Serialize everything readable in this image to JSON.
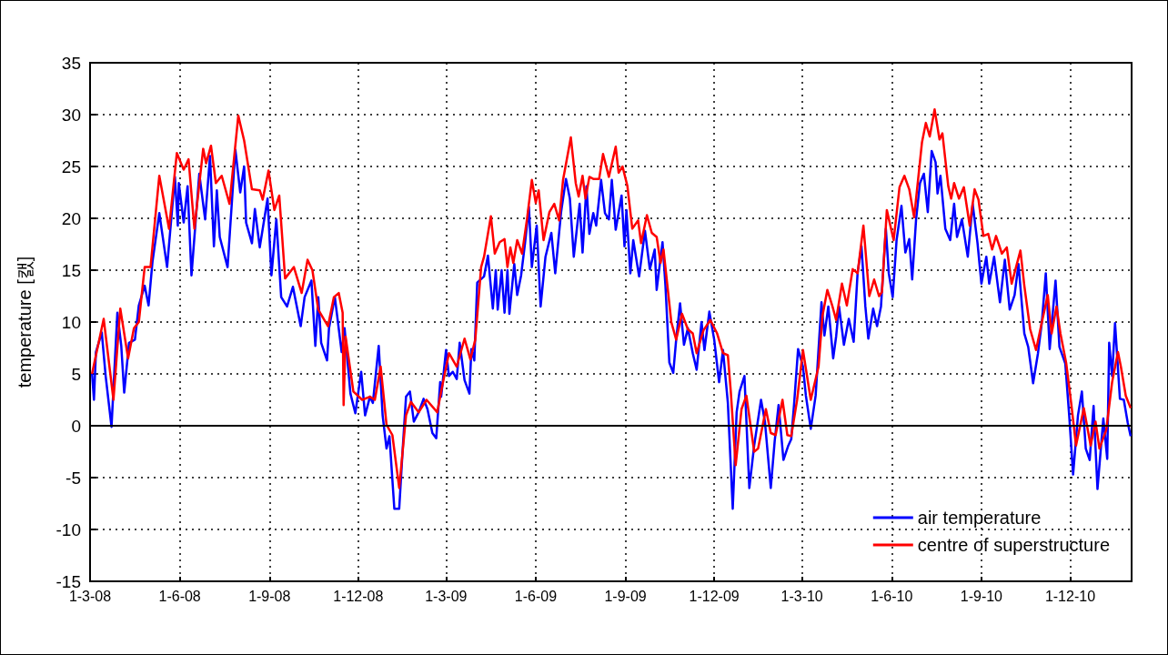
{
  "chart_data": {
    "type": "line",
    "ylabel": "temperature [캜]",
    "xlim": [
      "2008-03-01",
      "2011-02-02"
    ],
    "ylim": [
      -15,
      35
    ],
    "yticks": [
      -15,
      -10,
      -5,
      0,
      5,
      10,
      15,
      20,
      25,
      30,
      35
    ],
    "xticks": [
      {
        "value": "2008-03-01",
        "label": "1-3-08"
      },
      {
        "value": "2008-06-01",
        "label": "1-6-08"
      },
      {
        "value": "2008-09-01",
        "label": "1-9-08"
      },
      {
        "value": "2008-12-01",
        "label": "1-12-08"
      },
      {
        "value": "2009-03-01",
        "label": "1-3-09"
      },
      {
        "value": "2009-06-01",
        "label": "1-6-09"
      },
      {
        "value": "2009-09-01",
        "label": "1-9-09"
      },
      {
        "value": "2009-12-01",
        "label": "1-12-09"
      },
      {
        "value": "2010-03-01",
        "label": "1-3-10"
      },
      {
        "value": "2010-06-01",
        "label": "1-6-10"
      },
      {
        "value": "2010-09-01",
        "label": "1-9-10"
      },
      {
        "value": "2010-12-01",
        "label": "1-12-10"
      }
    ],
    "grid": true,
    "legend": "bottom right",
    "marker": "none",
    "ref_lines": [
      {
        "axis": "y",
        "value": 0,
        "color": "#000000"
      }
    ],
    "series": [
      {
        "name": "air temperature",
        "color": "#0000ff",
        "x": [
          "2008-03-03",
          "2008-03-05",
          "2008-03-07",
          "2008-03-13",
          "2008-03-17",
          "2008-03-23",
          "2008-03-29",
          "2008-04-02",
          "2008-04-05",
          "2008-04-10",
          "2008-04-16",
          "2008-04-20",
          "2008-04-26",
          "2008-04-30",
          "2008-05-04",
          "2008-05-11",
          "2008-05-19",
          "2008-05-27",
          "2008-05-30",
          "2008-05-31",
          "2008-06-05",
          "2008-06-09",
          "2008-06-13",
          "2008-06-21",
          "2008-06-27",
          "2008-07-02",
          "2008-07-06",
          "2008-07-09",
          "2008-07-12",
          "2008-07-20",
          "2008-07-28",
          "2008-08-02",
          "2008-08-06",
          "2008-08-08",
          "2008-08-14",
          "2008-08-17",
          "2008-08-22",
          "2008-08-30",
          "2008-09-03",
          "2008-09-08",
          "2008-09-13",
          "2008-09-19",
          "2008-09-25",
          "2008-10-03",
          "2008-10-07",
          "2008-10-14",
          "2008-10-18",
          "2008-10-21",
          "2008-10-24",
          "2008-10-30",
          "2008-11-01",
          "2008-11-07",
          "2008-11-14",
          "2008-11-17",
          "2008-11-23",
          "2008-11-28",
          "2008-12-04",
          "2008-12-08",
          "2008-12-13",
          "2008-12-16",
          "2008-12-22",
          "2008-12-26",
          "2008-12-30",
          "2009-01-02",
          "2009-01-07",
          "2009-01-12",
          "2009-01-16",
          "2009-01-19",
          "2009-01-23",
          "2009-01-27",
          "2009-02-01",
          "2009-02-06",
          "2009-02-10",
          "2009-02-15",
          "2009-02-19",
          "2009-02-23",
          "2009-02-24",
          "2009-03-01",
          "2009-03-04",
          "2009-03-08",
          "2009-03-12",
          "2009-03-15",
          "2009-03-20",
          "2009-03-25",
          "2009-03-27",
          "2009-03-30",
          "2009-04-02",
          "2009-04-09",
          "2009-04-13",
          "2009-04-18",
          "2009-04-21",
          "2009-04-23",
          "2009-04-27",
          "2009-04-30",
          "2009-05-03",
          "2009-05-05",
          "2009-05-10",
          "2009-05-13",
          "2009-05-17",
          "2009-05-21",
          "2009-05-25",
          "2009-05-28",
          "2009-06-02",
          "2009-06-06",
          "2009-06-11",
          "2009-06-17",
          "2009-06-21",
          "2009-06-27",
          "2009-07-02",
          "2009-07-06",
          "2009-07-10",
          "2009-07-16",
          "2009-07-19",
          "2009-07-23",
          "2009-07-26",
          "2009-07-30",
          "2009-08-02",
          "2009-08-07",
          "2009-08-11",
          "2009-08-15",
          "2009-08-18",
          "2009-08-22",
          "2009-08-28",
          "2009-08-31",
          "2009-09-02",
          "2009-09-06",
          "2009-09-09",
          "2009-09-15",
          "2009-09-21",
          "2009-09-26",
          "2009-10-01",
          "2009-10-03",
          "2009-10-09",
          "2009-10-12",
          "2009-10-16",
          "2009-10-20",
          "2009-10-23",
          "2009-10-27",
          "2009-10-31",
          "2009-11-04",
          "2009-11-09",
          "2009-11-13",
          "2009-11-18",
          "2009-11-21",
          "2009-11-26",
          "2009-12-01",
          "2009-12-06",
          "2009-12-10",
          "2009-12-15",
          "2009-12-20",
          "2009-12-24",
          "2009-12-27",
          "2010-01-01",
          "2010-01-06",
          "2010-01-11",
          "2010-01-18",
          "2010-01-22",
          "2010-01-28",
          "2010-02-01",
          "2010-02-05",
          "2010-02-10",
          "2010-02-15",
          "2010-02-18",
          "2010-02-21",
          "2010-02-25",
          "2010-03-02",
          "2010-03-05",
          "2010-03-10",
          "2010-03-15",
          "2010-03-21",
          "2010-03-24",
          "2010-03-28",
          "2010-04-02",
          "2010-04-05",
          "2010-04-08",
          "2010-04-13",
          "2010-04-18",
          "2010-04-23",
          "2010-04-27",
          "2010-05-01",
          "2010-05-05",
          "2010-05-08",
          "2010-05-13",
          "2010-05-17",
          "2010-05-21",
          "2010-05-26",
          "2010-05-29",
          "2010-06-02",
          "2010-06-06",
          "2010-06-11",
          "2010-06-15",
          "2010-06-19",
          "2010-06-22",
          "2010-06-26",
          "2010-06-30",
          "2010-07-04",
          "2010-07-08",
          "2010-07-12",
          "2010-07-16",
          "2010-07-18",
          "2010-07-21",
          "2010-07-26",
          "2010-07-31",
          "2010-08-04",
          "2010-08-07",
          "2010-08-12",
          "2010-08-18",
          "2010-08-23",
          "2010-08-28",
          "2010-09-01",
          "2010-09-06",
          "2010-09-09",
          "2010-09-14",
          "2010-09-20",
          "2010-09-25",
          "2010-09-30",
          "2010-10-05",
          "2010-10-09",
          "2010-10-15",
          "2010-10-19",
          "2010-10-24",
          "2010-10-29",
          "2010-11-02",
          "2010-11-06",
          "2010-11-10",
          "2010-11-16",
          "2010-11-20",
          "2010-11-26",
          "2010-11-30",
          "2010-12-04",
          "2010-12-09",
          "2010-12-13",
          "2010-12-17",
          "2010-12-21",
          "2010-12-25",
          "2010-12-29",
          "2011-01-04",
          "2011-01-08",
          "2011-01-10",
          "2011-01-13",
          "2011-01-16",
          "2011-01-21",
          "2011-01-25",
          "2011-01-29",
          "2011-02-01"
        ],
        "values": [
          5.1,
          2.5,
          7.1,
          9,
          4.8,
          -0.1,
          10.9,
          7.7,
          3.2,
          8,
          8.3,
          11.6,
          13.5,
          11.6,
          15.8,
          20.5,
          15.3,
          24,
          19.3,
          23.4,
          19.6,
          23.1,
          14.5,
          24.3,
          19.9,
          26,
          17.3,
          22.7,
          18.2,
          15.3,
          26.6,
          22.5,
          25,
          19.6,
          17.6,
          20.9,
          17.2,
          21.9,
          14.5,
          19.9,
          12.4,
          11.5,
          13.4,
          9.6,
          12.4,
          14,
          7.7,
          12.4,
          8,
          6.3,
          9.4,
          12.4,
          7.1,
          9.4,
          3.1,
          1.2,
          5.2,
          1,
          2.8,
          2.2,
          7.7,
          1,
          -2.2,
          -1,
          -8,
          -8,
          -1.6,
          2.8,
          3.3,
          0.4,
          1.3,
          2.6,
          1.6,
          -0.7,
          -1.2,
          4.2,
          2.8,
          7.3,
          4.8,
          5.2,
          4.5,
          8,
          4.4,
          3.1,
          7.4,
          6.3,
          13.8,
          14.4,
          16.4,
          11.3,
          15,
          11.2,
          15,
          10.9,
          15,
          10.8,
          15.6,
          12.6,
          14.5,
          17.6,
          21.1,
          15.3,
          19.3,
          11.5,
          16.3,
          18.6,
          14.7,
          20.6,
          23.8,
          21.9,
          16.3,
          21.4,
          16.7,
          23.1,
          18.5,
          20.5,
          19.3,
          23.7,
          20.5,
          19.9,
          23.7,
          18.9,
          22.2,
          17.3,
          20.8,
          14.7,
          17.9,
          14.4,
          18.8,
          15.1,
          17,
          13.1,
          17.7,
          13.5,
          6.1,
          5.1,
          8.3,
          11.8,
          7.8,
          9.4,
          7,
          5.4,
          10,
          7.3,
          11,
          8.3,
          4.2,
          7.3,
          2.2,
          -8,
          1.3,
          3.3,
          4.8,
          -6,
          -1.9,
          2.5,
          0.4,
          -6,
          -1.5,
          2,
          -3.3,
          -1.9,
          -1.3,
          2.2,
          7.4,
          5.7,
          2.9,
          -0.3,
          2.9,
          11.9,
          8.7,
          11.5,
          6.5,
          8.6,
          11.5,
          7.8,
          10.3,
          8.1,
          14.7,
          17.3,
          11.5,
          8.4,
          11.3,
          9.6,
          11.5,
          19,
          14.7,
          12.4,
          17.9,
          21.2,
          16.7,
          18,
          14.1,
          19.9,
          23.4,
          24.3,
          20.6,
          26.5,
          25.4,
          22.4,
          24.1,
          19,
          17.9,
          21.4,
          18.2,
          19.9,
          16.3,
          21.4,
          17.6,
          13.7,
          16.3,
          13.7,
          16.3,
          11.9,
          16,
          11.2,
          12.6,
          15.6,
          8.9,
          7.6,
          4.1,
          7,
          10,
          14.7,
          7.4,
          14,
          7.6,
          6,
          1,
          -4.7,
          1,
          3.3,
          -2.2,
          -3.3,
          1.9,
          -6.1,
          0.7,
          -3.2,
          8,
          4.8,
          9.9,
          2.6,
          2.5,
          0.3,
          -1
        ]
      },
      {
        "name": "centre of superstructure",
        "color": "#ff0000",
        "x": [
          "2008-03-03",
          "2008-03-15",
          "2008-03-25",
          "2008-04-01",
          "2008-04-09",
          "2008-04-15",
          "2008-04-20",
          "2008-04-26",
          "2008-05-02",
          "2008-05-11",
          "2008-05-21",
          "2008-05-29",
          "2008-06-05",
          "2008-06-10",
          "2008-06-16",
          "2008-06-25",
          "2008-06-28",
          "2008-07-03",
          "2008-07-08",
          "2008-07-14",
          "2008-07-22",
          "2008-07-31",
          "2008-08-06",
          "2008-08-14",
          "2008-08-22",
          "2008-08-25",
          "2008-08-31",
          "2008-09-06",
          "2008-09-11",
          "2008-09-17",
          "2008-09-26",
          "2008-10-04",
          "2008-10-10",
          "2008-10-15",
          "2008-10-21",
          "2008-10-31",
          "2008-11-06",
          "2008-11-11",
          "2008-11-15",
          "2008-11-16",
          "2008-11-18",
          "2008-11-26",
          "2008-12-05",
          "2008-12-13",
          "2008-12-18",
          "2008-12-24",
          "2008-12-30",
          "2009-01-05",
          "2009-01-12",
          "2009-01-19",
          "2009-01-24",
          "2009-02-01",
          "2009-02-09",
          "2009-02-20",
          "2009-02-24",
          "2009-03-04",
          "2009-03-12",
          "2009-03-20",
          "2009-03-26",
          "2009-03-31",
          "2009-04-06",
          "2009-04-09",
          "2009-04-16",
          "2009-04-20",
          "2009-04-25",
          "2009-04-30",
          "2009-05-03",
          "2009-05-06",
          "2009-05-09",
          "2009-05-13",
          "2009-05-18",
          "2009-05-23",
          "2009-05-28",
          "2009-06-01",
          "2009-06-04",
          "2009-06-09",
          "2009-06-15",
          "2009-06-20",
          "2009-06-25",
          "2009-06-29",
          "2009-07-07",
          "2009-07-12",
          "2009-07-15",
          "2009-07-19",
          "2009-07-22",
          "2009-07-26",
          "2009-07-30",
          "2009-08-05",
          "2009-08-09",
          "2009-08-15",
          "2009-08-22",
          "2009-08-25",
          "2009-08-29",
          "2009-09-03",
          "2009-09-08",
          "2009-09-14",
          "2009-09-17",
          "2009-09-23",
          "2009-09-28",
          "2009-10-03",
          "2009-10-07",
          "2009-10-10",
          "2009-10-18",
          "2009-10-23",
          "2009-10-29",
          "2009-11-04",
          "2009-11-09",
          "2009-11-13",
          "2009-11-20",
          "2009-11-27",
          "2009-12-04",
          "2009-12-10",
          "2009-12-15",
          "2009-12-18",
          "2009-12-23",
          "2009-12-29",
          "2010-01-03",
          "2010-01-11",
          "2010-01-15",
          "2010-01-23",
          "2010-01-28",
          "2010-02-02",
          "2010-02-09",
          "2010-02-14",
          "2010-02-18",
          "2010-02-24",
          "2010-03-02",
          "2010-03-10",
          "2010-03-18",
          "2010-03-22",
          "2010-03-27",
          "2010-04-01",
          "2010-04-05",
          "2010-04-11",
          "2010-04-16",
          "2010-04-22",
          "2010-04-27",
          "2010-05-03",
          "2010-05-09",
          "2010-05-14",
          "2010-05-19",
          "2010-05-22",
          "2010-05-27",
          "2010-06-03",
          "2010-06-09",
          "2010-06-14",
          "2010-06-19",
          "2010-06-24",
          "2010-07-02",
          "2010-07-06",
          "2010-07-10",
          "2010-07-15",
          "2010-07-20",
          "2010-07-23",
          "2010-07-29",
          "2010-08-01",
          "2010-08-04",
          "2010-08-09",
          "2010-08-14",
          "2010-08-20",
          "2010-08-25",
          "2010-08-29",
          "2010-09-03",
          "2010-09-08",
          "2010-09-12",
          "2010-09-16",
          "2010-09-22",
          "2010-09-27",
          "2010-10-02",
          "2010-10-11",
          "2010-10-15",
          "2010-10-21",
          "2010-10-27",
          "2010-11-02",
          "2010-11-08",
          "2010-11-12",
          "2010-11-17",
          "2010-11-21",
          "2010-11-27",
          "2010-12-02",
          "2010-12-07",
          "2010-12-15",
          "2010-12-22",
          "2010-12-27",
          "2010-12-31",
          "2011-01-07",
          "2011-01-13",
          "2011-01-19",
          "2011-01-22",
          "2011-01-27",
          "2011-02-01"
        ],
        "values": [
          5,
          10.3,
          2.5,
          11.3,
          6.5,
          9.4,
          10,
          15.3,
          15.3,
          24.1,
          19,
          26.3,
          24.7,
          25.7,
          19,
          26.7,
          25.3,
          27,
          23.4,
          24.1,
          21.4,
          29.9,
          27.5,
          22.8,
          22.7,
          21.8,
          24.6,
          20.8,
          22.2,
          14.2,
          15.3,
          12.8,
          16,
          15,
          11.2,
          9.6,
          12.4,
          12.8,
          10.9,
          2,
          8.6,
          3.3,
          2.5,
          2.8,
          2.5,
          5.7,
          0.1,
          -0.9,
          -6,
          1,
          2.3,
          1.3,
          2.5,
          1.3,
          3.3,
          7,
          5.7,
          8.4,
          6.4,
          8.3,
          15.3,
          16.3,
          20.2,
          16.6,
          17.7,
          18,
          15.3,
          17.2,
          15.7,
          17.9,
          16.6,
          19.9,
          23.7,
          21.5,
          22.7,
          17.9,
          20.6,
          21.4,
          19.8,
          23.7,
          27.8,
          23.4,
          22.1,
          24.1,
          21.9,
          24,
          23.8,
          23.8,
          26.2,
          24,
          26.9,
          24.4,
          25,
          23.1,
          19,
          19.8,
          17.6,
          20.3,
          18.6,
          18.2,
          15.7,
          17,
          10,
          8.3,
          10.8,
          9.3,
          8.9,
          7,
          9.2,
          10.2,
          8.9,
          7,
          6.8,
          3.3,
          -3.8,
          1.6,
          2.9,
          -2.5,
          -2.2,
          1.6,
          -0.7,
          -0.9,
          2.5,
          -0.9,
          -1,
          2.5,
          7.3,
          2.5,
          5.7,
          10.6,
          13.1,
          11.6,
          10.2,
          13.7,
          11.6,
          15.1,
          14.7,
          19.3,
          12.5,
          14.1,
          12.5,
          12.9,
          20.8,
          17.9,
          23,
          24.1,
          22.8,
          20.1,
          27.3,
          29.2,
          27.9,
          30.5,
          27.6,
          28.2,
          23.1,
          21.9,
          23.4,
          21.9,
          23,
          19.3,
          22.8,
          21.8,
          18.3,
          18.5,
          17,
          18.3,
          16.6,
          17.2,
          13.7,
          16.9,
          13.5,
          9.3,
          7.3,
          10,
          12.6,
          8.9,
          11.5,
          8.9,
          6,
          2.2,
          -1.9,
          1.7,
          -1.9,
          0.4,
          -2.2,
          -0.4,
          4.2,
          7.1,
          5.7,
          2.9,
          1.7
        ]
      }
    ]
  }
}
